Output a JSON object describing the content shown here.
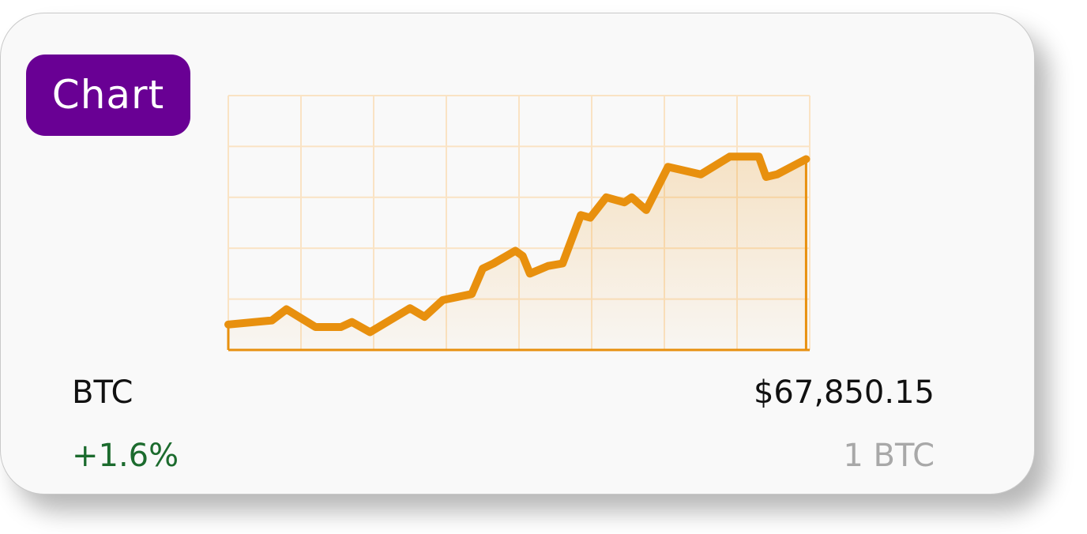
{
  "badge": {
    "label": "Chart",
    "color": "#690094"
  },
  "asset": {
    "symbol": "BTC",
    "change": "+1.6%",
    "price": "$67,850.15",
    "quantity": "1 BTC"
  },
  "colors": {
    "line": "#e8900e",
    "grid": "#fae3c4",
    "change_positive": "#1c6b2e",
    "quantity_text": "#a8a8a8"
  },
  "chart_data": {
    "type": "area",
    "title": "",
    "xlabel": "",
    "ylabel": "",
    "grid": true,
    "legend": "none",
    "xlim": [
      0,
      8
    ],
    "ylim": [
      0,
      5
    ],
    "x": [
      0,
      0.6,
      0.8,
      1.2,
      1.55,
      1.7,
      1.95,
      2.5,
      2.7,
      2.95,
      3.35,
      3.5,
      3.65,
      3.95,
      4.05,
      4.15,
      4.4,
      4.6,
      4.85,
      4.98,
      5.2,
      5.45,
      5.55,
      5.75,
      6.05,
      6.2,
      6.5,
      6.9,
      7.0,
      7.3,
      7.4,
      7.55,
      7.95
    ],
    "y": [
      0.5,
      0.58,
      0.8,
      0.45,
      0.45,
      0.55,
      0.35,
      0.82,
      0.65,
      0.98,
      1.1,
      1.6,
      1.7,
      1.95,
      1.85,
      1.5,
      1.65,
      1.7,
      2.65,
      2.6,
      3.0,
      2.9,
      3.0,
      2.75,
      3.6,
      3.55,
      3.45,
      3.8,
      3.8,
      3.8,
      3.4,
      3.45,
      3.75
    ]
  }
}
